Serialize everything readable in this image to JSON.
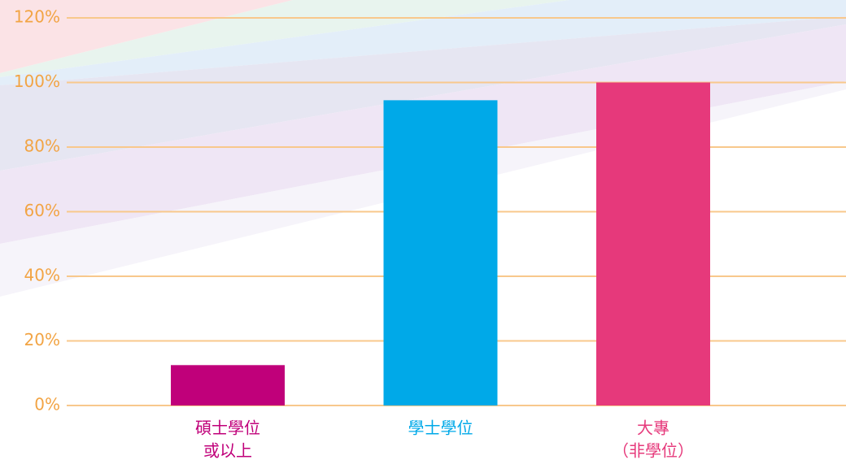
{
  "chart_data": {
    "type": "bar",
    "categories": [
      [
        "碩士學位",
        "或以上"
      ],
      [
        "學士學位"
      ],
      [
        "大專",
        "（非學位）"
      ]
    ],
    "values": [
      12.5,
      94.5,
      100
    ],
    "colors": [
      "#c0007a",
      "#00a9e8",
      "#e6397b"
    ],
    "ylim": [
      0,
      120
    ],
    "yticks": [
      {
        "value": 0,
        "label": "0%"
      },
      {
        "value": 20,
        "label": "20%"
      },
      {
        "value": 40,
        "label": "40%"
      },
      {
        "value": 60,
        "label": "60%"
      },
      {
        "value": 80,
        "label": "80%"
      },
      {
        "value": 100,
        "label": "100%"
      },
      {
        "value": 120,
        "label": "120%"
      }
    ],
    "grid": true
  }
}
